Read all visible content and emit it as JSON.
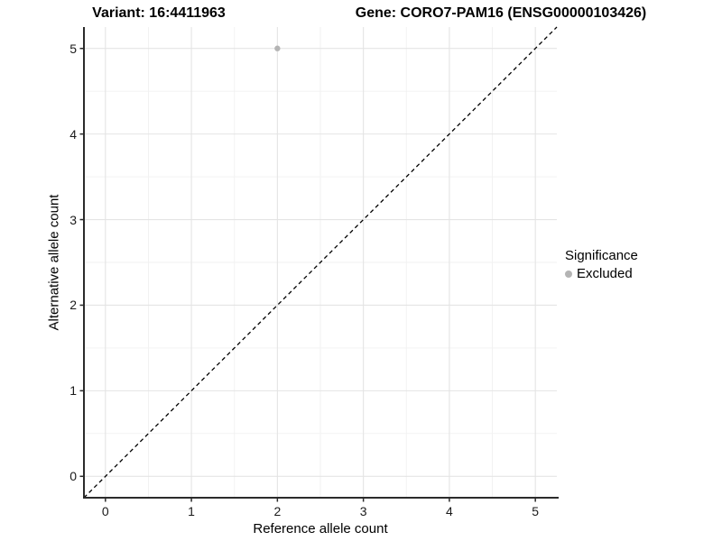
{
  "figure": {
    "title_variant": "Variant: 16:4411963",
    "title_gene": "Gene: CORO7-PAM16 (ENSG00000103426)"
  },
  "chart_data": {
    "type": "scatter",
    "title_left": "Variant: 16:4411963",
    "title_right": "Gene: CORO7-PAM16 (ENSG00000103426)",
    "xlabel": "Reference allele count",
    "ylabel": "Alternative allele count",
    "xlim": [
      -0.25,
      5.25
    ],
    "ylim": [
      -0.25,
      5.25
    ],
    "x_ticks": [
      0,
      1,
      2,
      3,
      4,
      5
    ],
    "y_ticks": [
      0,
      1,
      2,
      3,
      4,
      5
    ],
    "minor_ticks": [
      0.5,
      1.5,
      2.5,
      3.5,
      4.5
    ],
    "grid": "major+minor",
    "reference_line": {
      "type": "y=x",
      "style": "dashed",
      "color": "#000000"
    },
    "series": [
      {
        "name": "Excluded",
        "color": "#b4b4b4",
        "points": [
          {
            "x": 2,
            "y": 5
          }
        ]
      }
    ],
    "legend": {
      "title": "Significance",
      "position": "right",
      "entries": [
        {
          "label": "Excluded",
          "color": "#b4b4b4"
        }
      ]
    },
    "colors": {
      "background": "#ffffff",
      "panel_background": "#ffffff",
      "grid_major": "#e4e4e4",
      "grid_minor": "#f1f1f1",
      "axis_line": "#2b2b2b",
      "text": "#000000",
      "point": "#b4b4b4"
    }
  }
}
